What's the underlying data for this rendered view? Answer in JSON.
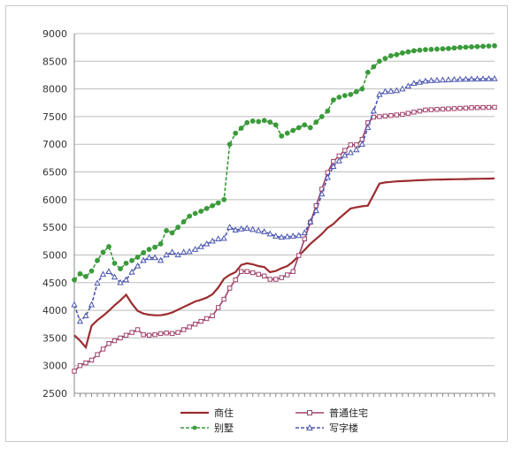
{
  "chart_data": {
    "type": "line",
    "title": "",
    "xlabel": "",
    "ylabel": "",
    "ylim": [
      2500,
      9000
    ],
    "yticks": [
      2500,
      3000,
      3500,
      4000,
      4500,
      5000,
      5500,
      6000,
      6500,
      7000,
      7500,
      8000,
      8500,
      9000
    ],
    "grid": "horizontal",
    "legend": "bottom",
    "series": [
      {
        "name": "商住",
        "color": "#9b2d30",
        "marker": "none",
        "dashed": false,
        "values": [
          3550,
          3450,
          3330,
          3720,
          3820,
          3900,
          3990,
          4090,
          4180,
          4280,
          4120,
          3990,
          3940,
          3920,
          3910,
          3910,
          3930,
          3960,
          4010,
          4060,
          4110,
          4160,
          4190,
          4230,
          4290,
          4410,
          4570,
          4640,
          4690,
          4820,
          4850,
          4830,
          4800,
          4780,
          4690,
          4710,
          4760,
          4800,
          4880,
          4990,
          5090,
          5200,
          5290,
          5380,
          5490,
          5560,
          5660,
          5750,
          5840,
          5860,
          5880,
          5890,
          6090,
          6290,
          6310,
          6320,
          6330,
          6335,
          6340,
          6345,
          6350,
          6355,
          6360,
          6362,
          6364,
          6366,
          6368,
          6370,
          6372,
          6374,
          6376,
          6378,
          6380,
          6382
        ]
      },
      {
        "name": "普通住宅",
        "color": "#a0406a",
        "marker": "open-square",
        "dashed": false,
        "values": [
          2900,
          3000,
          3050,
          3100,
          3200,
          3300,
          3400,
          3450,
          3500,
          3550,
          3600,
          3650,
          3560,
          3550,
          3560,
          3580,
          3590,
          3580,
          3600,
          3650,
          3700,
          3750,
          3800,
          3850,
          3900,
          4050,
          4200,
          4400,
          4550,
          4700,
          4700,
          4680,
          4650,
          4620,
          4560,
          4560,
          4590,
          4640,
          4700,
          4990,
          5290,
          5590,
          5890,
          6190,
          6490,
          6690,
          6790,
          6890,
          6990,
          6990,
          7090,
          7390,
          7490,
          7500,
          7510,
          7520,
          7530,
          7540,
          7560,
          7580,
          7600,
          7620,
          7625,
          7630,
          7635,
          7640,
          7645,
          7650,
          7655,
          7660,
          7662,
          7664,
          7666,
          7668
        ]
      },
      {
        "name": "别墅",
        "color": "#3a9b3a",
        "marker": "dot",
        "dashed": true,
        "values": [
          4550,
          4660,
          4610,
          4710,
          4900,
          5050,
          5150,
          4850,
          4750,
          4850,
          4900,
          4960,
          5040,
          5100,
          5140,
          5200,
          5440,
          5400,
          5500,
          5600,
          5700,
          5750,
          5790,
          5840,
          5890,
          5940,
          6000,
          7000,
          7200,
          7290,
          7390,
          7420,
          7410,
          7430,
          7400,
          7350,
          7150,
          7200,
          7250,
          7300,
          7350,
          7300,
          7400,
          7500,
          7600,
          7800,
          7850,
          7880,
          7900,
          7950,
          8000,
          8300,
          8400,
          8500,
          8550,
          8600,
          8620,
          8650,
          8670,
          8690,
          8700,
          8710,
          8715,
          8720,
          8725,
          8730,
          8740,
          8750,
          8755,
          8760,
          8765,
          8770,
          8775,
          8780
        ]
      },
      {
        "name": "写字楼",
        "color": "#4a55b0",
        "marker": "open-triangle",
        "dashed": true,
        "values": [
          4100,
          3800,
          3900,
          4100,
          4490,
          4650,
          4700,
          4600,
          4500,
          4550,
          4690,
          4800,
          4900,
          4950,
          4950,
          4900,
          5000,
          5050,
          5000,
          5050,
          5060,
          5100,
          5150,
          5200,
          5250,
          5290,
          5300,
          5500,
          5450,
          5470,
          5480,
          5460,
          5440,
          5420,
          5380,
          5340,
          5320,
          5330,
          5340,
          5350,
          5400,
          5600,
          5800,
          6100,
          6400,
          6600,
          6700,
          6800,
          6850,
          6900,
          7000,
          7300,
          7600,
          7900,
          7950,
          7960,
          7970,
          8000,
          8050,
          8100,
          8120,
          8140,
          8150,
          8155,
          8160,
          8165,
          8170,
          8172,
          8174,
          8176,
          8178,
          8180,
          8182,
          8184
        ]
      }
    ]
  }
}
